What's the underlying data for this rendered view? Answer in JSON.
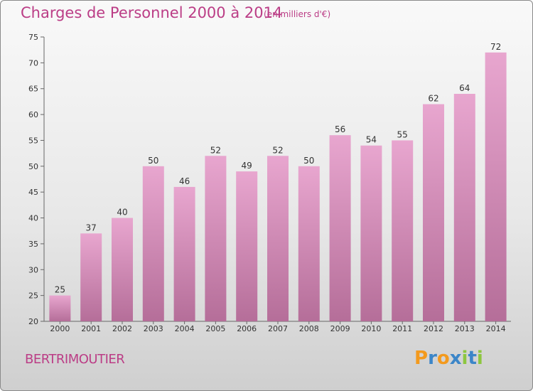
{
  "title": "Charges de Personnel 2000 à 2014",
  "subtitle": "(en milliers d'€)",
  "commune": "BERTRIMOUTIER",
  "logo": {
    "letters": [
      "P",
      "r",
      "o",
      "x",
      "i",
      "t",
      "i"
    ],
    "colors": [
      "#f39a1e",
      "#3c86c8",
      "#f39a1e",
      "#3c86c8",
      "#8dc63f",
      "#3c86c8",
      "#8dc63f"
    ]
  },
  "colors": {
    "accent": "#bb3d86",
    "bar_top": "#e8a6cf",
    "bar_bottom": "#b56e99"
  },
  "chart_data": {
    "type": "bar",
    "title": "Charges de Personnel 2000 à 2014",
    "subtitle": "(en milliers d'€)",
    "categories": [
      "2000",
      "2001",
      "2002",
      "2003",
      "2004",
      "2005",
      "2006",
      "2007",
      "2008",
      "2009",
      "2010",
      "2011",
      "2012",
      "2013",
      "2014"
    ],
    "values": [
      25,
      37,
      40,
      50,
      46,
      52,
      49,
      52,
      50,
      56,
      54,
      55,
      62,
      64,
      72
    ],
    "ylim": [
      20,
      75
    ],
    "yticks": [
      20,
      25,
      30,
      35,
      40,
      45,
      50,
      55,
      60,
      65,
      70,
      75
    ],
    "grid": false,
    "xlabel": "",
    "ylabel": ""
  }
}
